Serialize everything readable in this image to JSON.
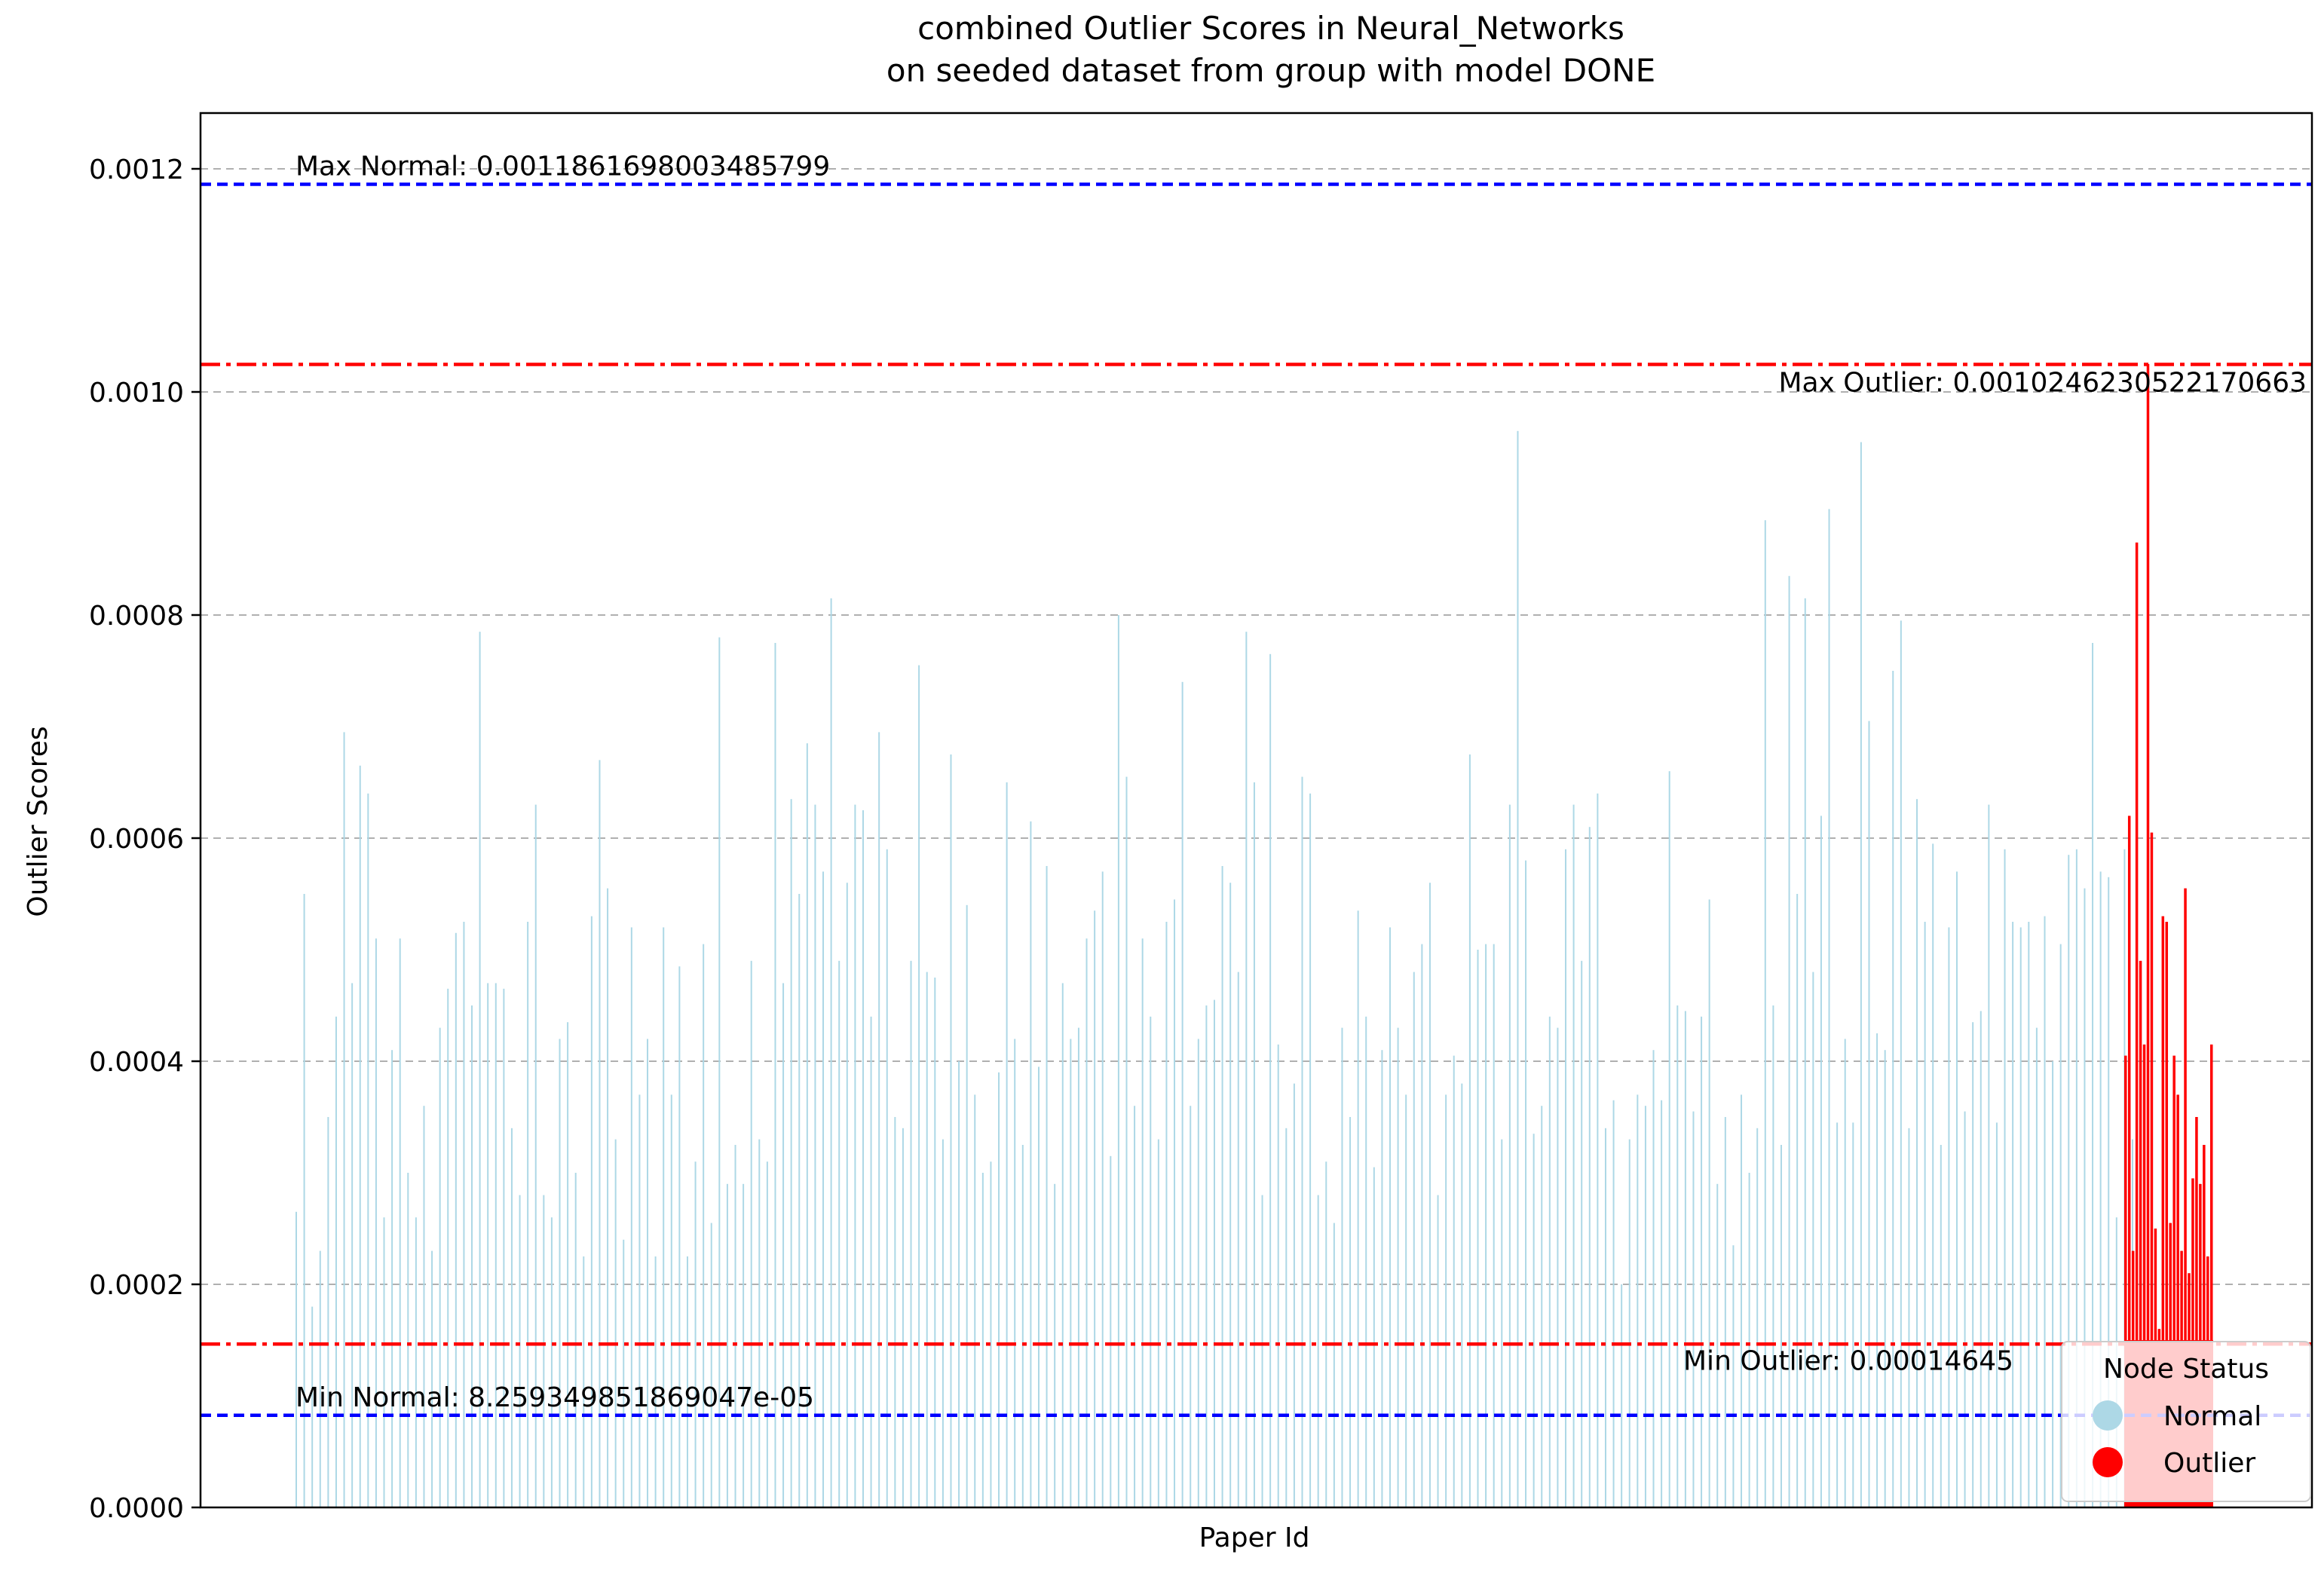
{
  "chart_data": {
    "type": "bar",
    "title_line1": "combined Outlier Scores in Neural_Networks",
    "title_line2": "on seeded dataset from group with model DONE",
    "xlabel": "Paper Id",
    "ylabel": "Outlier Scores",
    "ylim": [
      0,
      0.00125
    ],
    "yticks": [
      {
        "value": 0.0,
        "label": "0.0000"
      },
      {
        "value": 0.0002,
        "label": "0.0002"
      },
      {
        "value": 0.0004,
        "label": "0.0004"
      },
      {
        "value": 0.0006,
        "label": "0.0006"
      },
      {
        "value": 0.0008,
        "label": "0.0008"
      },
      {
        "value": 0.001,
        "label": "0.0010"
      },
      {
        "value": 0.0012,
        "label": "0.0012"
      }
    ],
    "grid": "y-dashed",
    "colors": {
      "normal": "#add8e6",
      "outlier": "#ff0000",
      "normal_line": "#0000ff",
      "outlier_line": "#ff0000"
    },
    "reference_lines": {
      "max_normal": {
        "value": 0.0011861698003485799,
        "label": "Max Normal: 0.0011861698003485799"
      },
      "min_normal": {
        "value": 8.259349851869047e-05,
        "label": "Min Normal: 8.259349851869047e-05"
      },
      "max_outlier": {
        "value": 0.0010246230522170663,
        "label": "Max Outlier: 0.0010246230522170663"
      },
      "min_outlier": {
        "value": 0.00014645,
        "label": "Min Outlier: 0.00014645"
      }
    },
    "legend": {
      "title": "Node Status",
      "placement": "lower-right",
      "entries": [
        {
          "label": "Normal",
          "color": "#add8e6"
        },
        {
          "label": "Outlier",
          "color": "#ff0000"
        }
      ]
    },
    "series": [
      {
        "name": "Normal",
        "approx_count": 560,
        "values": [
          0.000265,
          0.00055,
          0.00018,
          0.00023,
          0.00035,
          0.00044,
          0.000695,
          0.00047,
          0.000665,
          0.00064,
          0.00051,
          0.00026,
          0.00041,
          0.00051,
          0.0003,
          0.00026,
          0.00036,
          0.00023,
          0.00043,
          0.000465,
          0.000515,
          0.000525,
          0.00045,
          0.000785,
          0.00047,
          0.00047,
          0.000465,
          0.00034,
          0.00028,
          0.000525,
          0.00063,
          0.00028,
          0.00026,
          0.00042,
          0.000435,
          0.0003,
          0.000225,
          0.00053,
          0.00067,
          0.000555,
          0.00033,
          0.00024,
          0.00052,
          0.00037,
          0.00042,
          0.000225,
          0.00052,
          0.00037,
          0.000485,
          0.000225,
          0.00031,
          0.000505,
          0.000255,
          0.00078,
          0.00029,
          0.000325,
          0.00029,
          0.00049,
          0.00033,
          0.00031,
          0.000775,
          0.00047,
          0.000635,
          0.00055,
          0.000685,
          0.00063,
          0.00057,
          0.000815,
          0.00049,
          0.00056,
          0.00063,
          0.000625,
          0.00044,
          0.000695,
          0.00059,
          0.00035,
          0.00034,
          0.00049,
          0.000755,
          0.00048,
          0.000475,
          0.00033,
          0.000675,
          0.0004,
          0.00054,
          0.00037,
          0.0003,
          0.00031,
          0.00039,
          0.00065,
          0.00042,
          0.000325,
          0.000615,
          0.000395,
          0.000575,
          0.00029,
          0.00047,
          0.00042,
          0.00043,
          0.00051,
          0.000535,
          0.00057,
          0.000315,
          0.0008,
          0.000655,
          0.00036,
          0.00051,
          0.00044,
          0.00033,
          0.000525,
          0.000545,
          0.00074,
          0.00036,
          0.00042,
          0.00045,
          0.000455,
          0.000575,
          0.00056,
          0.00048,
          0.000785,
          0.00065,
          0.00028,
          0.000765,
          0.000415,
          0.00034,
          0.00038,
          0.000655,
          0.00064,
          0.00028,
          0.00031,
          0.000255,
          0.00043,
          0.00035,
          0.000535,
          0.00044,
          0.000305,
          0.00041,
          0.00052,
          0.00043,
          0.00037,
          0.00048,
          0.000505,
          0.00056,
          0.00028,
          0.00037,
          0.000405,
          0.00038,
          0.000675,
          0.0005,
          0.000505,
          0.000505,
          0.00033,
          0.00063,
          0.000965,
          0.00058,
          0.000335,
          0.00036,
          0.00044,
          0.00043,
          0.00059,
          0.00063,
          0.00049,
          0.00061,
          0.00064,
          0.00034,
          0.000365,
          0.0002,
          0.00033,
          0.00037,
          0.00036,
          0.00041,
          0.000365,
          0.00066,
          0.00045,
          0.000445,
          0.000355,
          0.00044,
          0.000545,
          0.00029,
          0.00035,
          0.000235,
          0.00037,
          0.0003,
          0.00034,
          0.000885,
          0.00045,
          0.000325,
          0.000835,
          0.00055,
          0.000815,
          0.00048,
          0.00062,
          0.000895,
          0.000345,
          0.00042,
          0.000345,
          0.000955,
          0.000705,
          0.000425,
          0.00041,
          0.00075,
          0.000795,
          0.00034,
          0.000635,
          0.000525,
          0.000595,
          0.000325,
          0.00052,
          0.00057,
          0.000355,
          0.000435,
          0.000445,
          0.00063,
          0.000345,
          0.00059,
          0.000525,
          0.00052,
          0.000525,
          0.00043,
          0.00053,
          0.0004,
          0.000505,
          0.000585,
          0.00059,
          0.000555,
          0.000775,
          0.00057,
          0.000565,
          0.00026,
          0.00059,
          0.00033
        ]
      },
      {
        "name": "Outlier",
        "approx_count": 50,
        "values": [
          0.000405,
          0.00062,
          0.00023,
          0.000865,
          0.00049,
          0.000415,
          0.001025,
          0.000605,
          0.00025,
          0.00016,
          0.00053,
          0.000525,
          0.000255,
          0.000405,
          0.00037,
          0.00023,
          0.000555,
          0.00021,
          0.000295,
          0.00035,
          0.00029,
          0.000325,
          0.000225,
          0.000415
        ]
      }
    ]
  }
}
